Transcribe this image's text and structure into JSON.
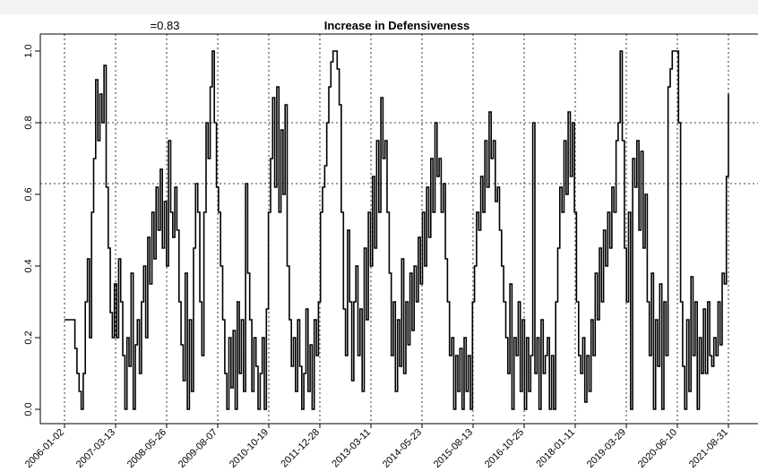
{
  "chart_data": {
    "type": "line",
    "title": "Increase in Defensiveness",
    "annotation": "=0.83",
    "ylim": [
      0,
      1
    ],
    "y_ticks": [
      "0.0",
      "0.2",
      "0.4",
      "0.6",
      "0.8",
      "1.0"
    ],
    "x_tick_labels": [
      "2006-01-02",
      "2007-03-13",
      "2008-05-26",
      "2009-08-07",
      "2010-10-19",
      "2011-12-28",
      "2013-03-11",
      "2014-05-23",
      "2015-08-13",
      "2016-10-25",
      "2018-01-11",
      "2019-03-29",
      "2020-06-10",
      "2021-08-31"
    ],
    "hlines": [
      0.8,
      0.63
    ],
    "grid": "vertical dotted lines at each date tick; horizontal dotted lines at 0.8 and 0.63",
    "series": [
      {
        "values": [
          0.25,
          0.25,
          0.25,
          0.25,
          0.25,
          0.17,
          0.1,
          0.05,
          0.0,
          0.1,
          0.3,
          0.42,
          0.2,
          0.55,
          0.7,
          0.92,
          0.75,
          0.88,
          0.8,
          0.96,
          0.62,
          0.45,
          0.27,
          0.2,
          0.35,
          0.2,
          0.42,
          0.3,
          0.15,
          0.0,
          0.2,
          0.12,
          0.38,
          0.0,
          0.18,
          0.25,
          0.1,
          0.3,
          0.4,
          0.2,
          0.48,
          0.35,
          0.55,
          0.42,
          0.62,
          0.5,
          0.67,
          0.45,
          0.58,
          0.4,
          0.75,
          0.55,
          0.48,
          0.62,
          0.5,
          0.3,
          0.18,
          0.08,
          0.38,
          0.0,
          0.25,
          0.05,
          0.45,
          0.63,
          0.55,
          0.3,
          0.15,
          0.55,
          0.8,
          0.7,
          0.9,
          1.0,
          0.8,
          0.62,
          0.55,
          0.4,
          0.25,
          0.1,
          0.0,
          0.2,
          0.06,
          0.22,
          0.0,
          0.3,
          0.1,
          0.25,
          0.05,
          0.63,
          0.38,
          0.25,
          0.05,
          0.2,
          0.12,
          0.0,
          0.1,
          0.2,
          0.0,
          0.28,
          0.55,
          0.7,
          0.87,
          0.62,
          0.9,
          0.55,
          0.78,
          0.6,
          0.85,
          0.4,
          0.25,
          0.12,
          0.2,
          0.05,
          0.25,
          0.12,
          0.0,
          0.1,
          0.28,
          0.05,
          0.18,
          0.0,
          0.25,
          0.15,
          0.3,
          0.55,
          0.62,
          0.68,
          0.8,
          0.9,
          0.97,
          1.0,
          1.0,
          0.95,
          0.85,
          0.55,
          0.28,
          0.15,
          0.5,
          0.3,
          0.08,
          0.3,
          0.4,
          0.15,
          0.28,
          0.05,
          0.45,
          0.25,
          0.55,
          0.4,
          0.65,
          0.45,
          0.75,
          0.55,
          0.87,
          0.7,
          0.75,
          0.55,
          0.38,
          0.15,
          0.3,
          0.05,
          0.25,
          0.12,
          0.42,
          0.1,
          0.3,
          0.18,
          0.38,
          0.22,
          0.4,
          0.3,
          0.48,
          0.35,
          0.55,
          0.4,
          0.62,
          0.48,
          0.7,
          0.55,
          0.8,
          0.65,
          0.7,
          0.55,
          0.63,
          0.42,
          0.3,
          0.15,
          0.2,
          0.0,
          0.15,
          0.05,
          0.17,
          0.0,
          0.2,
          0.05,
          0.15,
          0.0,
          0.3,
          0.4,
          0.55,
          0.5,
          0.65,
          0.55,
          0.75,
          0.62,
          0.83,
          0.7,
          0.75,
          0.58,
          0.62,
          0.5,
          0.4,
          0.3,
          0.2,
          0.1,
          0.35,
          0.0,
          0.2,
          0.15,
          0.3,
          0.05,
          0.25,
          0.0,
          0.2,
          0.05,
          0.15,
          0.8,
          0.1,
          0.2,
          0.0,
          0.25,
          0.1,
          0.15,
          0.2,
          0.0,
          0.15,
          0.0,
          0.3,
          0.45,
          0.62,
          0.55,
          0.75,
          0.6,
          0.83,
          0.65,
          0.8,
          0.55,
          0.3,
          0.15,
          0.1,
          0.2,
          0.02,
          0.15,
          0.05,
          0.25,
          0.15,
          0.38,
          0.25,
          0.45,
          0.3,
          0.5,
          0.4,
          0.55,
          0.45,
          0.62,
          0.55,
          0.75,
          0.8,
          1.0,
          0.75,
          0.45,
          0.3,
          0.55,
          0.0,
          0.7,
          0.62,
          0.75,
          0.5,
          0.72,
          0.45,
          0.6,
          0.3,
          0.15,
          0.38,
          0.0,
          0.25,
          0.12,
          0.35,
          0.0,
          0.3,
          0.15,
          0.9,
          0.95,
          1.0,
          1.0,
          1.0,
          0.8,
          0.3,
          0.12,
          0.0,
          0.25,
          0.05,
          0.37,
          0.15,
          0.3,
          0.0,
          0.2,
          0.1,
          0.28,
          0.1,
          0.3,
          0.15,
          0.12,
          0.2,
          0.15,
          0.3,
          0.18,
          0.38,
          0.35,
          0.65,
          0.88
        ]
      }
    ]
  }
}
